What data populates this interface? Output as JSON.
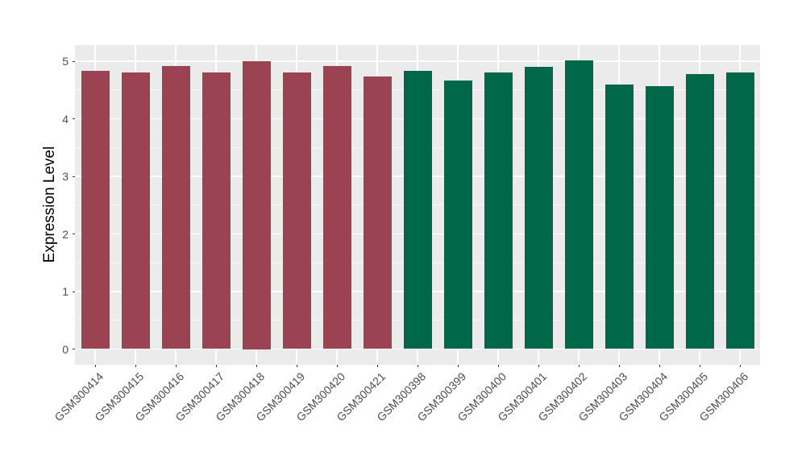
{
  "colors": {
    "panel_background": "#EBEBEB",
    "gridline": "#FFFFFF",
    "axis_text": "#4D4D4D",
    "axis_title": "#000000",
    "tick_mark": "#333333",
    "red_group": "#9B4352",
    "green_group": "#006849"
  },
  "chart_data": {
    "type": "bar",
    "title": "",
    "xlabel": "",
    "ylabel": "Expression Level",
    "ylim": [
      0,
      5.3
    ],
    "yticks": [
      0,
      1,
      2,
      3,
      4,
      5
    ],
    "grid": "white major and minor horizontal lines plus white vertical line per category on gray panel",
    "legend": "none",
    "categories": [
      "GSM300414",
      "GSM300415",
      "GSM300416",
      "GSM300417",
      "GSM300418",
      "GSM300419",
      "GSM300420",
      "GSM300421",
      "GSM300398",
      "GSM300399",
      "GSM300400",
      "GSM300401",
      "GSM300402",
      "GSM300403",
      "GSM300404",
      "GSM300405",
      "GSM300406"
    ],
    "values": [
      4.83,
      4.8,
      4.91,
      4.81,
      5.0,
      4.81,
      4.92,
      4.73,
      4.83,
      4.67,
      4.8,
      4.9,
      5.02,
      4.59,
      4.56,
      4.77,
      4.81
    ],
    "bar_colors": [
      "#9B4352",
      "#9B4352",
      "#9B4352",
      "#9B4352",
      "#9B4352",
      "#9B4352",
      "#9B4352",
      "#9B4352",
      "#006849",
      "#006849",
      "#006849",
      "#006849",
      "#006849",
      "#006849",
      "#006849",
      "#006849",
      "#006849"
    ]
  }
}
